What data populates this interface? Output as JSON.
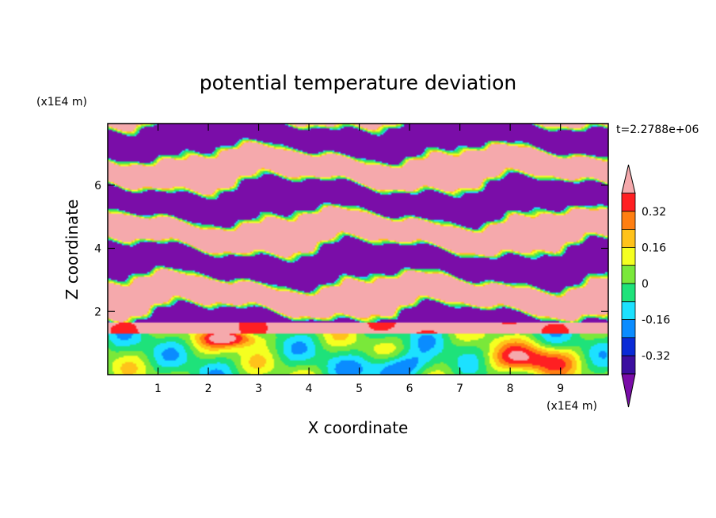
{
  "chart_data": {
    "type": "heatmap",
    "title": "potential temperature deviation",
    "xlabel": "X coordinate",
    "ylabel": "Z coordinate",
    "x_unit": "(x1E4 m)",
    "y_unit": "(x1E4 m)",
    "time_label": "t=2.2788e+06",
    "xlim": [
      0,
      9.95
    ],
    "ylim": [
      0,
      7.95
    ],
    "x_ticks": [
      "1",
      "2",
      "3",
      "4",
      "5",
      "6",
      "7",
      "8",
      "9"
    ],
    "y_ticks": [
      "2",
      "4",
      "6"
    ],
    "colorbar": {
      "tick_labels": [
        "0.32",
        "0.16",
        "0",
        "-0.16",
        "-0.32"
      ],
      "colors": [
        "#7a0da8",
        "#3c0fa0",
        "#0a2bd6",
        "#0a8cff",
        "#1ce1ff",
        "#1ee27a",
        "#7ae83a",
        "#f5ff20",
        "#ffc21a",
        "#ff7f12",
        "#ff1f22",
        "#f5a9ac"
      ]
    }
  }
}
